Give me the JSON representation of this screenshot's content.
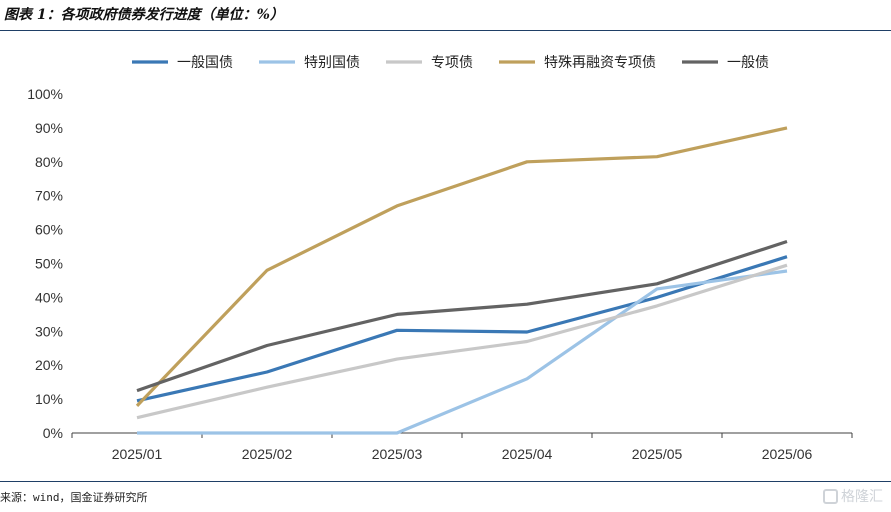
{
  "figure": {
    "title": "图表 1：各项政府债券发行进度（单位：%）",
    "source": "来源：wind，国金证券研究所",
    "watermark": "格隆汇"
  },
  "chart_data": {
    "type": "line",
    "title": "",
    "xlabel": "",
    "ylabel": "",
    "x": [
      "2025/01",
      "2025/02",
      "2025/03",
      "2025/04",
      "2025/05",
      "2025/06"
    ],
    "ylim": [
      0,
      100
    ],
    "yticks": [
      "0%",
      "10%",
      "20%",
      "30%",
      "40%",
      "50%",
      "60%",
      "70%",
      "80%",
      "90%",
      "100%"
    ],
    "grid": false,
    "legend_position": "top",
    "series": [
      {
        "name": "一般国债",
        "color": "#3a78b5",
        "values": [
          9.5,
          18,
          30.3,
          29.8,
          40,
          52
        ]
      },
      {
        "name": "特别国债",
        "color": "#9cc3e6",
        "values": [
          0,
          0,
          0,
          16,
          42.5,
          47.8
        ]
      },
      {
        "name": "专项债",
        "color": "#c8c8c8",
        "values": [
          4.5,
          13.5,
          21.8,
          27,
          37.5,
          49.5
        ]
      },
      {
        "name": "特殊再融资专项债",
        "color": "#bfa05c",
        "values": [
          8,
          48,
          67,
          80,
          81.5,
          90
        ]
      },
      {
        "name": "一般债",
        "color": "#636363",
        "values": [
          12.5,
          25.8,
          35,
          38,
          44,
          56.5
        ]
      }
    ]
  }
}
